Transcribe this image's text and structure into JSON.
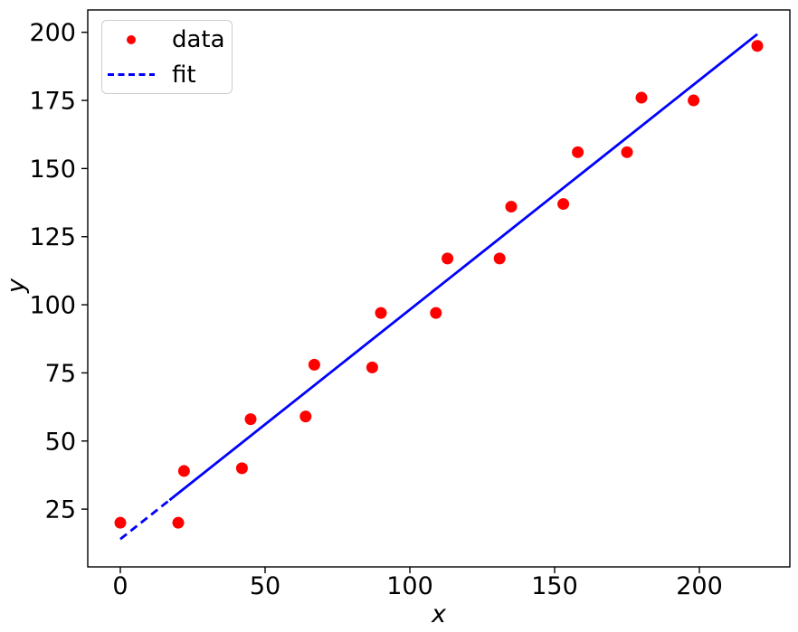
{
  "figure": {
    "background": "#ffffff",
    "frame_color": "#000000",
    "tick_label_color": "#000000"
  },
  "legend": {
    "position": "upper left",
    "entries": [
      {
        "label": "data",
        "marker": "red-dot",
        "color": "#ff0000"
      },
      {
        "label": "fit",
        "marker": "blue-dashed-line",
        "color": "#0000ff"
      }
    ]
  },
  "chart_data": {
    "type": "scatter",
    "title": "",
    "xlabel": "x",
    "ylabel": "y",
    "xlim": [
      -11.25,
      231.25
    ],
    "ylim": [
      3.8,
      208.2
    ],
    "xticks": [
      0,
      50,
      100,
      150,
      200
    ],
    "yticks": [
      25,
      50,
      75,
      100,
      125,
      150,
      175,
      200
    ],
    "grid": false,
    "legend_position": "upper left",
    "series": [
      {
        "name": "data",
        "type": "scatter",
        "color": "#ff0000",
        "marker": "circle",
        "points": [
          [
            0,
            20
          ],
          [
            20,
            20
          ],
          [
            22,
            39
          ],
          [
            42,
            40
          ],
          [
            45,
            58
          ],
          [
            64,
            59
          ],
          [
            67,
            78
          ],
          [
            87,
            77
          ],
          [
            90,
            97
          ],
          [
            109,
            97
          ],
          [
            113,
            117
          ],
          [
            131,
            117
          ],
          [
            135,
            136
          ],
          [
            153,
            137
          ],
          [
            158,
            156
          ],
          [
            175,
            156
          ],
          [
            180,
            176
          ],
          [
            198,
            175
          ],
          [
            220,
            195
          ]
        ]
      },
      {
        "name": "fit",
        "type": "line",
        "color": "#0000ff",
        "linestyle": "dashed",
        "x_start": 0,
        "y_start": 14,
        "x_end": 220,
        "y_end": 199.3,
        "solid_from_x": 17
      }
    ]
  }
}
